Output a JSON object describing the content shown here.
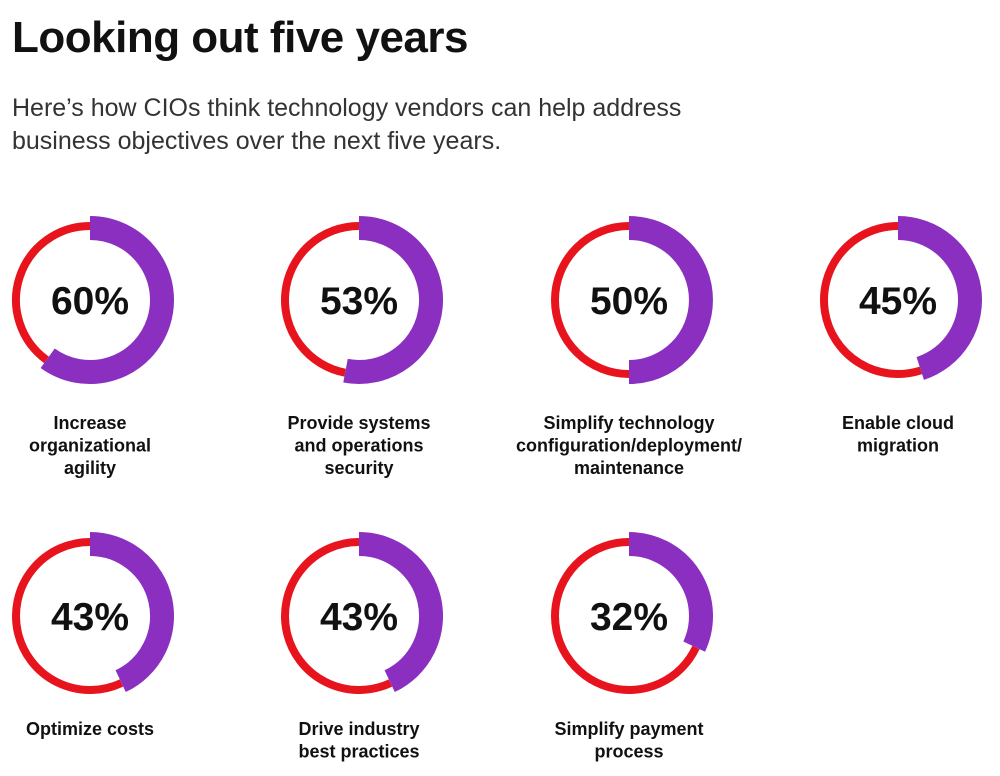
{
  "header": {
    "title": "Looking out five years",
    "subtitle": "Here’s how CIOs think technology vendors can help address business objectives over the next five years."
  },
  "colors": {
    "value_arc": "#8a2fbf",
    "remainder_arc": "#e8141d",
    "text": "#111111"
  },
  "chart_data": {
    "type": "donut",
    "title": "Looking out five years",
    "subtitle": "Here’s how CIOs think technology vendors can help address business objectives over the next five years.",
    "unit": "%",
    "items": [
      {
        "label": "Increase organizational agility",
        "caption_lines": [
          "Increase",
          "organizational",
          "agility"
        ],
        "value": 60,
        "display": "60%"
      },
      {
        "label": "Provide systems and operations security",
        "caption_lines": [
          "Provide systems",
          "and operations",
          "security"
        ],
        "value": 53,
        "display": "53%"
      },
      {
        "label": "Simplify technology configuration/deployment/maintenance",
        "caption_lines": [
          "Simplify technology",
          "configuration/deployment/",
          "maintenance"
        ],
        "value": 50,
        "display": "50%"
      },
      {
        "label": "Enable cloud migration",
        "caption_lines": [
          "Enable cloud",
          "migration"
        ],
        "value": 45,
        "display": "45%"
      },
      {
        "label": "Optimize costs",
        "caption_lines": [
          "Optimize costs"
        ],
        "value": 43,
        "display": "43%"
      },
      {
        "label": "Drive industry best practices",
        "caption_lines": [
          "Drive industry",
          "best practices"
        ],
        "value": 43,
        "display": "43%"
      },
      {
        "label": "Simplify payment process",
        "caption_lines": [
          "Simplify payment",
          "process"
        ],
        "value": 32,
        "display": "32%"
      }
    ]
  }
}
